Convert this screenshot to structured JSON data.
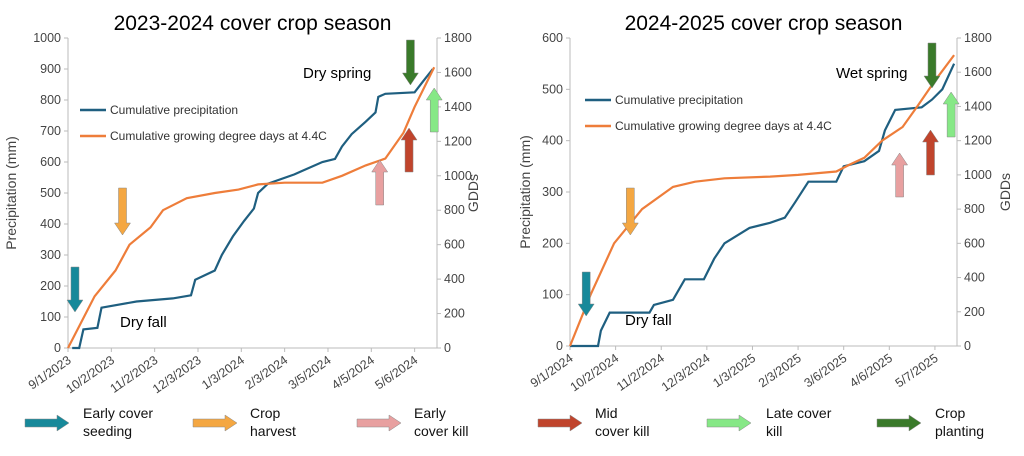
{
  "chart_data": [
    {
      "type": "line",
      "title": "2023-2024 cover crop season",
      "y_label": "Precipitation (mm)",
      "y2_label": "GDDs",
      "xlim": [
        "9/1/2023",
        "5/22/2024"
      ],
      "xticks": [
        "9/1/2023",
        "10/2/2023",
        "11/2/2023",
        "12/3/2023",
        "1/3/2024",
        "2/3/2024",
        "3/5/2024",
        "4/5/2024",
        "5/6/2024"
      ],
      "ylim": [
        0,
        1000
      ],
      "yticks": [
        0,
        100,
        200,
        300,
        400,
        500,
        600,
        700,
        800,
        900,
        1000
      ],
      "y2lim": [
        0,
        1800
      ],
      "y2ticks": [
        0,
        200,
        400,
        600,
        800,
        1000,
        1200,
        1400,
        1600,
        1800
      ],
      "series": [
        {
          "name": "Cumulative precipitation",
          "color": "#1f5f80",
          "x": [
            "9/4/2023",
            "9/9/2023",
            "9/12/2023",
            "9/22/2023",
            "9/25/2023",
            "10/20/2023",
            "11/15/2023",
            "11/28/2023",
            "12/1/2023",
            "12/15/2023",
            "12/20/2023",
            "12/28/2023",
            "1/5/2024",
            "1/12/2024",
            "1/15/2024",
            "1/22/2024",
            "2/10/2024",
            "2/15/2024",
            "3/1/2024",
            "3/10/2024",
            "3/15/2024",
            "3/22/2024",
            "4/1/2024",
            "4/8/2024",
            "4/10/2024",
            "4/15/2024",
            "5/6/2024",
            "5/12/2024",
            "5/19/2024"
          ],
          "values": [
            0,
            0,
            60,
            65,
            130,
            150,
            160,
            170,
            220,
            250,
            300,
            360,
            410,
            450,
            500,
            530,
            560,
            570,
            600,
            610,
            650,
            690,
            730,
            760,
            810,
            820,
            825,
            860,
            900
          ]
        },
        {
          "name": "Cumulative growing degree days at 4.4C",
          "color": "#ee7d3a",
          "axis": "y2",
          "x": [
            "9/1/2023",
            "9/20/2023",
            "10/5/2023",
            "10/15/2023",
            "10/30/2023",
            "11/8/2023",
            "11/25/2023",
            "12/15/2023",
            "1/1/2024",
            "1/15/2024",
            "2/3/2024",
            "3/1/2024",
            "3/15/2024",
            "4/1/2024",
            "4/15/2024",
            "4/28/2024",
            "5/6/2024",
            "5/20/2024"
          ],
          "values": [
            0,
            300,
            450,
            600,
            700,
            800,
            870,
            900,
            920,
            950,
            960,
            960,
            1000,
            1060,
            1100,
            1250,
            1400,
            1630
          ]
        }
      ],
      "annotations": [
        "Dry fall",
        "Dry spring"
      ],
      "event_dates": [
        "9/6/2023",
        "10/10/2023",
        "4/11/2024",
        "5/2/2024",
        "5/20/2024",
        "5/3/2024"
      ]
    },
    {
      "type": "line",
      "title": "2024-2025 cover crop season",
      "y_label": "Precipitation (mm)",
      "y2_label": "GDDs",
      "xlim": [
        "9/1/2024",
        "5/22/2025"
      ],
      "xticks": [
        "9/1/2024",
        "10/2/2024",
        "11/2/2024",
        "12/3/2024",
        "1/3/2025",
        "2/3/2025",
        "3/6/2025",
        "4/6/2025",
        "5/7/2025"
      ],
      "ylim": [
        0,
        600
      ],
      "yticks": [
        0,
        100,
        200,
        300,
        400,
        500,
        600
      ],
      "y2lim": [
        0,
        1800
      ],
      "y2ticks": [
        0,
        200,
        400,
        600,
        800,
        1000,
        1200,
        1400,
        1600,
        1800
      ],
      "series": [
        {
          "name": "Cumulative precipitation",
          "color": "#1f5f80",
          "x": [
            "9/1/2024",
            "9/20/2024",
            "9/22/2024",
            "9/28/2024",
            "10/25/2024",
            "10/28/2024",
            "11/10/2024",
            "11/18/2024",
            "12/1/2024",
            "12/8/2024",
            "12/15/2024",
            "1/1/2025",
            "1/15/2025",
            "1/25/2025",
            "2/1/2025",
            "2/10/2025",
            "3/1/2025",
            "3/6/2025",
            "3/20/2025",
            "3/30/2025",
            "4/3/2025",
            "4/10/2025",
            "4/28/2025",
            "5/5/2025",
            "5/12/2025",
            "5/20/2025"
          ],
          "values": [
            0,
            0,
            30,
            65,
            65,
            80,
            90,
            130,
            130,
            170,
            200,
            230,
            240,
            250,
            280,
            320,
            320,
            350,
            360,
            380,
            420,
            460,
            465,
            480,
            500,
            550
          ]
        },
        {
          "name": "Cumulative growing degree days at 4.4C",
          "color": "#ee7d3a",
          "axis": "y2",
          "x": [
            "9/1/2024",
            "9/15/2024",
            "10/1/2024",
            "10/20/2024",
            "11/10/2024",
            "11/25/2024",
            "12/15/2024",
            "1/15/2025",
            "2/3/2025",
            "3/1/2025",
            "3/10/2025",
            "3/20/2025",
            "4/1/2025",
            "4/15/2025",
            "4/25/2025",
            "5/7/2025",
            "5/20/2025"
          ],
          "values": [
            0,
            300,
            600,
            800,
            930,
            960,
            980,
            990,
            1000,
            1020,
            1060,
            1100,
            1200,
            1280,
            1400,
            1550,
            1700
          ]
        }
      ],
      "annotations": [
        "Dry fall",
        "Wet spring"
      ],
      "event_dates": [
        "9/12/2024",
        "10/12/2024",
        "4/13/2025",
        "5/4/2025",
        "5/18/2025",
        "5/5/2025"
      ]
    }
  ],
  "legend": [
    {
      "lines": [
        "Early cover",
        "seeding"
      ],
      "color": "#17899a",
      "direction": "down"
    },
    {
      "lines": [
        "Crop",
        "harvest"
      ],
      "color": "#f4a742",
      "direction": "down"
    },
    {
      "lines": [
        "Early",
        "cover kill"
      ],
      "color": "#e8a0a0",
      "direction": "up"
    },
    {
      "lines": [
        "Mid",
        "cover kill"
      ],
      "color": "#c0442c",
      "direction": "up"
    },
    {
      "lines": [
        "Late cover",
        "kill"
      ],
      "color": "#86e886",
      "direction": "up"
    },
    {
      "lines": [
        "Crop",
        "planting"
      ],
      "color": "#3a7a2a",
      "direction": "down"
    }
  ]
}
